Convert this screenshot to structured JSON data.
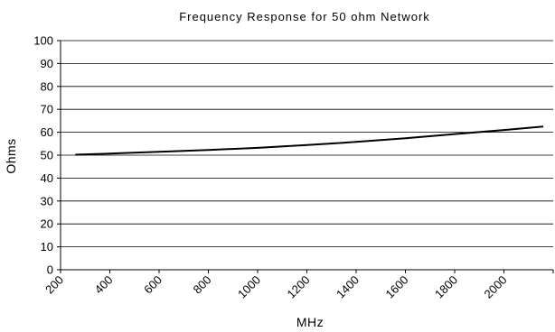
{
  "chart_data": {
    "type": "line",
    "title": "Frequency Response for 50 ohm Network",
    "xlabel": "MHz",
    "ylabel": "Ohms",
    "xlim": [
      200,
      2200
    ],
    "ylim": [
      0,
      100
    ],
    "x_ticks": [
      200,
      400,
      600,
      800,
      1000,
      1200,
      1400,
      1600,
      1800,
      2000
    ],
    "y_ticks": [
      0,
      10,
      20,
      30,
      40,
      50,
      60,
      70,
      80,
      90,
      100
    ],
    "grid": "horizontal",
    "legend": "none",
    "line_color": "#000000",
    "series": [
      {
        "x": [
          260,
          400,
          600,
          800,
          1000,
          1200,
          1400,
          1600,
          1800,
          2000,
          2160
        ],
        "y": [
          50.2,
          50.7,
          51.5,
          52.3,
          53.2,
          54.4,
          55.8,
          57.4,
          59.2,
          61.0,
          62.5
        ]
      }
    ]
  }
}
